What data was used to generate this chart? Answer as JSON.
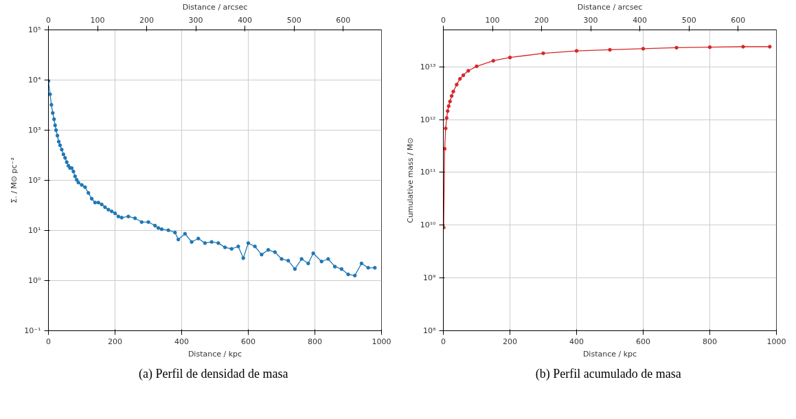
{
  "chart_data": [
    {
      "type": "line",
      "marker": "circle",
      "line_style": "solid",
      "log": "y",
      "grid": true,
      "xlabel": "Distance / kpc",
      "x2label": "Distance / arcsec",
      "ylabel": "Σ. / M⊙ pc⁻²",
      "xlim": [
        0,
        1000
      ],
      "xticks": [
        0,
        200,
        400,
        600,
        800,
        1000
      ],
      "x2lim": [
        0,
        678
      ],
      "x2ticks": [
        0,
        100,
        200,
        300,
        400,
        500,
        600
      ],
      "ylim": [
        0.1,
        100000
      ],
      "yticks": [
        {
          "value": 0.1,
          "label": "10⁻¹"
        },
        {
          "value": 1,
          "label": "10⁰"
        },
        {
          "value": 10,
          "label": "10¹"
        },
        {
          "value": 100,
          "label": "10²"
        },
        {
          "value": 1000,
          "label": "10³"
        },
        {
          "value": 10000,
          "label": "10⁴"
        },
        {
          "value": 100000,
          "label": "10⁵"
        }
      ],
      "annotations": [
        "(a)  Perfil de densidad de masa"
      ],
      "series": [
        {
          "color": "#1f77b4",
          "x": [
            0,
            5,
            9,
            13,
            17,
            20,
            23,
            27,
            31,
            35,
            40,
            45,
            50,
            55,
            60,
            65,
            70,
            75,
            80,
            85,
            90,
            100,
            110,
            120,
            130,
            140,
            150,
            160,
            170,
            180,
            190,
            200,
            210,
            220,
            240,
            260,
            280,
            300,
            320,
            330,
            340,
            360,
            380,
            390,
            410,
            430,
            450,
            470,
            490,
            510,
            530,
            550,
            570,
            585,
            600,
            620,
            640,
            660,
            680,
            700,
            720,
            740,
            760,
            780,
            795,
            820,
            840,
            860,
            880,
            900,
            920,
            940,
            960,
            980
          ],
          "values": [
            9500,
            5200,
            3200,
            2200,
            1650,
            1250,
            1000,
            780,
            590,
            500,
            410,
            330,
            280,
            230,
            195,
            175,
            175,
            150,
            120,
            102,
            90,
            81,
            73,
            56,
            43,
            36,
            36,
            33,
            29,
            26,
            24,
            22,
            19,
            18,
            19,
            17.5,
            14.7,
            14.7,
            12.5,
            11.2,
            10.6,
            10.1,
            9.1,
            6.6,
            8.6,
            5.9,
            6.9,
            5.6,
            5.9,
            5.6,
            4.6,
            4.3,
            4.8,
            2.8,
            5.6,
            4.8,
            3.3,
            4.1,
            3.7,
            2.7,
            2.5,
            1.7,
            2.7,
            2.2,
            3.5,
            2.4,
            2.7,
            1.9,
            1.7,
            1.33,
            1.26,
            2.2,
            1.8,
            1.8
          ]
        }
      ]
    },
    {
      "type": "line",
      "marker": "circle",
      "line_style": "solid",
      "log": "y",
      "grid": true,
      "xlabel": "Distance / kpc",
      "x2label": "Distance / arcsec",
      "ylabel": "Cumulative mass / M⊙",
      "xlim": [
        0,
        1000
      ],
      "xticks": [
        0,
        200,
        400,
        600,
        800,
        1000
      ],
      "x2lim": [
        0,
        678
      ],
      "x2ticks": [
        0,
        100,
        200,
        300,
        400,
        500,
        600
      ],
      "ylim": [
        100000000,
        50000000000000
      ],
      "yticks": [
        {
          "value": 100000000,
          "label": "10⁸"
        },
        {
          "value": 1000000000,
          "label": "10⁹"
        },
        {
          "value": 10000000000,
          "label": "10¹⁰"
        },
        {
          "value": 100000000000,
          "label": "10¹¹"
        },
        {
          "value": 1000000000000,
          "label": "10¹²"
        },
        {
          "value": 10000000000000,
          "label": "10¹³"
        }
      ],
      "annotations": [
        "(b)  Perfil acumulado de masa"
      ],
      "series": [
        {
          "color": "#d62728",
          "x": [
            1,
            4,
            7,
            10,
            13,
            16,
            20,
            25,
            30,
            40,
            50,
            60,
            75,
            100,
            150,
            200,
            300,
            400,
            500,
            600,
            700,
            800,
            900,
            980
          ],
          "values": [
            9000000000,
            280000000000,
            680000000000,
            1070000000000,
            1450000000000,
            1800000000000,
            2200000000000,
            2800000000000,
            3400000000000,
            4600000000000,
            5900000000000,
            6900000000000,
            8400000000000,
            10200000000000,
            13000000000000,
            15000000000000,
            18000000000000,
            20000000000000,
            21000000000000,
            22000000000000,
            23000000000000,
            23500000000000,
            24000000000000,
            24000000000000
          ]
        }
      ]
    }
  ]
}
